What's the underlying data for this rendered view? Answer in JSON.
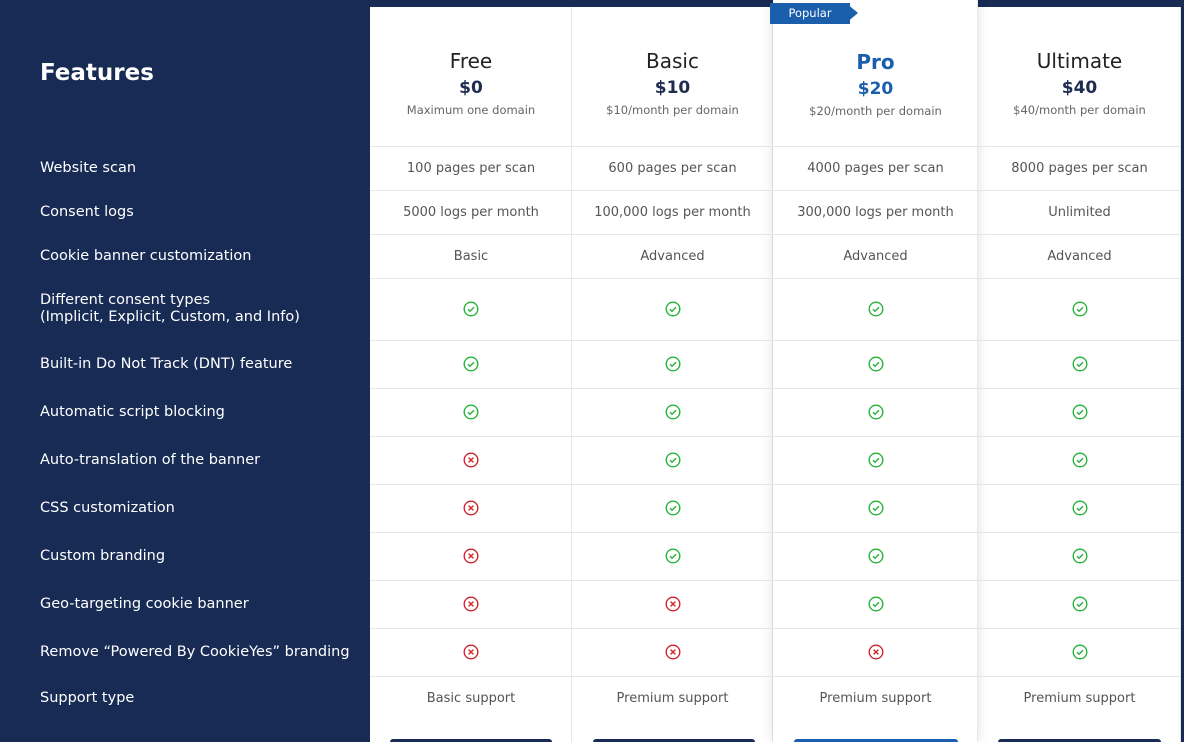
{
  "header": {
    "title": "Features"
  },
  "badge": "Popular",
  "plans": [
    {
      "name": "Free",
      "price": "$0",
      "note": "Maximum one domain"
    },
    {
      "name": "Basic",
      "price": "$10",
      "note": "$10/month per domain"
    },
    {
      "name": "Pro",
      "price": "$20",
      "note": "$20/month per domain"
    },
    {
      "name": "Ultimate",
      "price": "$40",
      "note": "$40/month per domain"
    }
  ],
  "rows": [
    {
      "feature": "Website scan",
      "cells": [
        "100 pages per scan",
        "600 pages per scan",
        "4000 pages per scan",
        "8000 pages per scan"
      ]
    },
    {
      "feature": "Consent logs",
      "cells": [
        "5000 logs per month",
        "100,000 logs per month",
        "300,000 logs per month",
        "Unlimited"
      ]
    },
    {
      "feature": "Cookie banner customization",
      "cells": [
        "Basic",
        "Advanced",
        "Advanced",
        "Advanced"
      ]
    },
    {
      "feature": "Different consent types\n(Implicit, Explicit, Custom, and Info)",
      "cells": [
        true,
        true,
        true,
        true
      ]
    },
    {
      "feature": "Built-in Do Not Track (DNT) feature",
      "cells": [
        true,
        true,
        true,
        true
      ]
    },
    {
      "feature": "Automatic script blocking",
      "cells": [
        true,
        true,
        true,
        true
      ]
    },
    {
      "feature": "Auto-translation of the banner",
      "cells": [
        false,
        true,
        true,
        true
      ]
    },
    {
      "feature": "CSS customization",
      "cells": [
        false,
        true,
        true,
        true
      ]
    },
    {
      "feature": "Custom branding",
      "cells": [
        false,
        true,
        true,
        true
      ]
    },
    {
      "feature": "Geo-targeting cookie banner",
      "cells": [
        false,
        false,
        true,
        true
      ]
    },
    {
      "feature": "Remove “Powered By CookieYes” branding",
      "cells": [
        false,
        false,
        false,
        true
      ]
    },
    {
      "feature": "Support type",
      "cells": [
        "Basic support",
        "Premium support",
        "Premium support",
        "Premium support"
      ]
    }
  ]
}
